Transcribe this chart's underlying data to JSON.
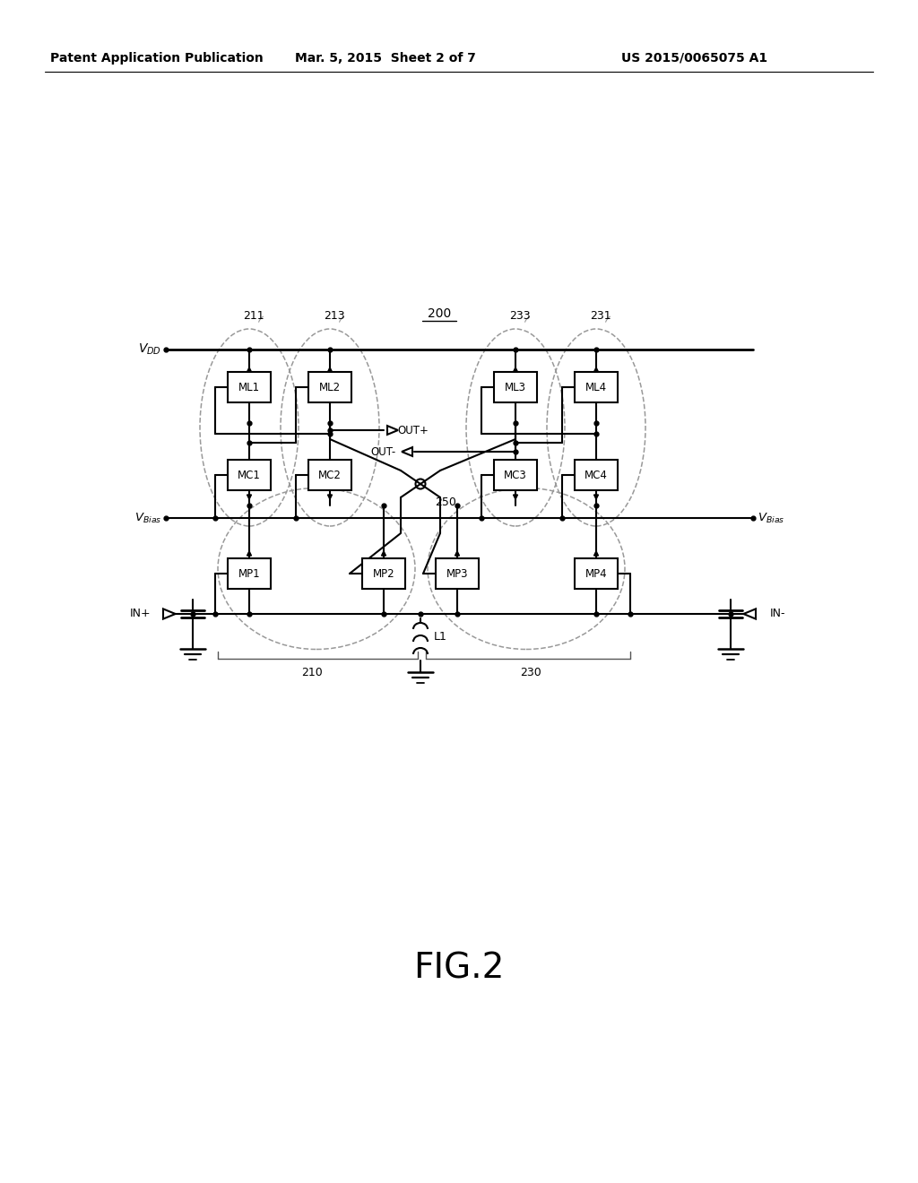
{
  "header_left": "Patent Application Publication",
  "header_mid": "Mar. 5, 2015  Sheet 2 of 7",
  "header_right": "US 2015/0065075 A1",
  "fig_label": "FIG.2",
  "label_200": "200",
  "label_211": "211",
  "label_213": "213",
  "label_233": "233",
  "label_231": "231",
  "label_210": "210",
  "label_230": "230",
  "label_250": "250",
  "label_ML1": "ML1",
  "label_ML2": "ML2",
  "label_ML3": "ML3",
  "label_ML4": "ML4",
  "label_MC1": "MC1",
  "label_MC2": "MC2",
  "label_MC3": "MC3",
  "label_MC4": "MC4",
  "label_MP1": "MP1",
  "label_MP2": "MP2",
  "label_MP3": "MP3",
  "label_MP4": "MP4",
  "label_L1": "L1",
  "label_INp": "IN+",
  "label_INm": "IN-",
  "label_OUTp": "OUT+",
  "label_OUTm": "OUT-",
  "bg_color": "#ffffff",
  "lw_main": 1.5,
  "lw_thick": 2.0,
  "lw_thin": 1.0,
  "lw_dash": 1.1,
  "dash_color": "#999999"
}
